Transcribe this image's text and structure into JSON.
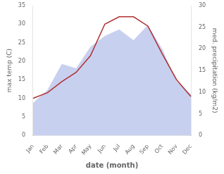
{
  "chart_data": {
    "type": "line",
    "categories": [
      "Jan",
      "Feb",
      "Mar",
      "Apr",
      "May",
      "Jun",
      "Jul",
      "Aug",
      "Sep",
      "Oct",
      "Nov",
      "Dec"
    ],
    "series": [
      {
        "type": "line",
        "color": "#b03030",
        "values": [
          10.0,
          11.5,
          14.5,
          17.0,
          21.5,
          30.0,
          32.0,
          32.0,
          29.5,
          22.0,
          15.0,
          10.5
        ]
      },
      {
        "type": "area",
        "color": "#c8d0f0",
        "axis": "y2",
        "values": [
          7.5,
          10.5,
          16.5,
          15.5,
          20.5,
          23.0,
          24.5,
          22.0,
          25.5,
          20.0,
          12.5,
          9.5
        ]
      }
    ],
    "xlabel": "date (month)",
    "ylabel": "max temp (C)",
    "y2label": "med. precipitation (kg/m2)",
    "ylim": [
      0,
      35
    ],
    "yticks": [
      0,
      5,
      10,
      15,
      20,
      25,
      30,
      35
    ],
    "y2lim": [
      0,
      30
    ],
    "y2ticks": [
      0,
      5,
      10,
      15,
      20,
      25,
      30
    ],
    "grid": false
  }
}
